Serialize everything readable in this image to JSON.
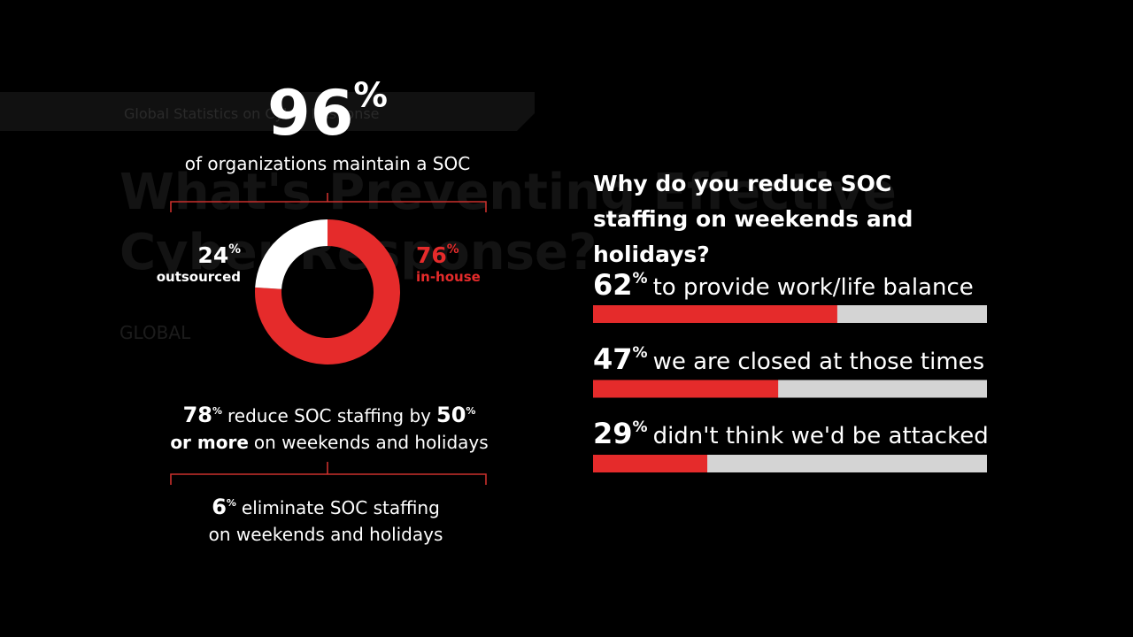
{
  "background": {
    "banner": "Global Statistics on Cyber Response",
    "heading_lines": [
      "What's Preventing Effective",
      "Cyber Response?"
    ],
    "section": "GLOBAL"
  },
  "chart_data": [
    {
      "type": "donut",
      "unit": "%",
      "headline": {
        "value": 96,
        "text": "of organizations maintain a SOC"
      },
      "categories": [
        "in-house",
        "outsourced"
      ],
      "values": [
        76,
        24
      ],
      "colors": [
        "#e52b2b",
        "#ffffff"
      ]
    },
    {
      "type": "bar",
      "orientation": "horizontal",
      "unit": "%",
      "title": "Why do you reduce SOC staffing on weekends and holidays?",
      "categories": [
        "to provide work/life balance",
        "we are closed at those times",
        "didn't think we'd be attacked"
      ],
      "values": [
        62,
        47,
        29
      ],
      "xlim": [
        0,
        100
      ],
      "color": "#e52b2b",
      "track_color": "#d4d4d4"
    }
  ],
  "statements": [
    {
      "value": 78,
      "text": "reduce SOC staffing by",
      "value2": 50,
      "bold_text": "or more",
      "text2": "on weekends and holidays"
    },
    {
      "value": 6,
      "text": "eliminate SOC staffing",
      "text2": "on weekends and holidays"
    }
  ]
}
